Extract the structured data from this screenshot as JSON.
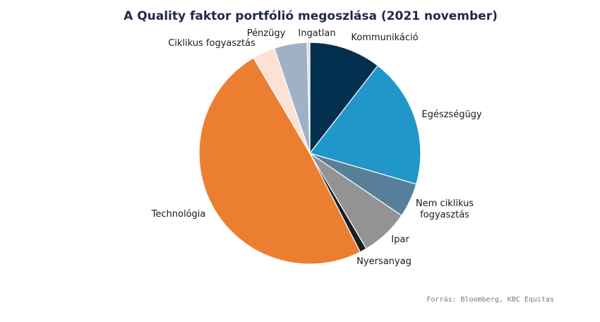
{
  "chart_data": {
    "type": "pie",
    "title": "A Quality faktor portfólió megoszlása (2021 november)",
    "slices": [
      {
        "label": "Kommunikáció",
        "value": 10.5,
        "color": "#04304f"
      },
      {
        "label": "Egészségügy",
        "value": 19.0,
        "color": "#2196c9"
      },
      {
        "label": "Nem ciklikus fogyasztás",
        "value": 5.0,
        "color": "#587f99"
      },
      {
        "label": "Ipar",
        "value": 7.0,
        "color": "#939393"
      },
      {
        "label": "Nyersanyag",
        "value": 1.0,
        "color": "#1e1e1e"
      },
      {
        "label": "Technológia",
        "value": 49.0,
        "color": "#ec7e32"
      },
      {
        "label": "Ciklikus fogyasztás",
        "value": 3.3,
        "color": "#fbe2d5"
      },
      {
        "label": "Pénzügy",
        "value": 4.8,
        "color": "#9fb1c6"
      },
      {
        "label": "Ingatlan",
        "value": 0.4,
        "color": "#d9d9d9"
      }
    ]
  },
  "source": "Forrás: Bloomberg, KBC Equitas"
}
